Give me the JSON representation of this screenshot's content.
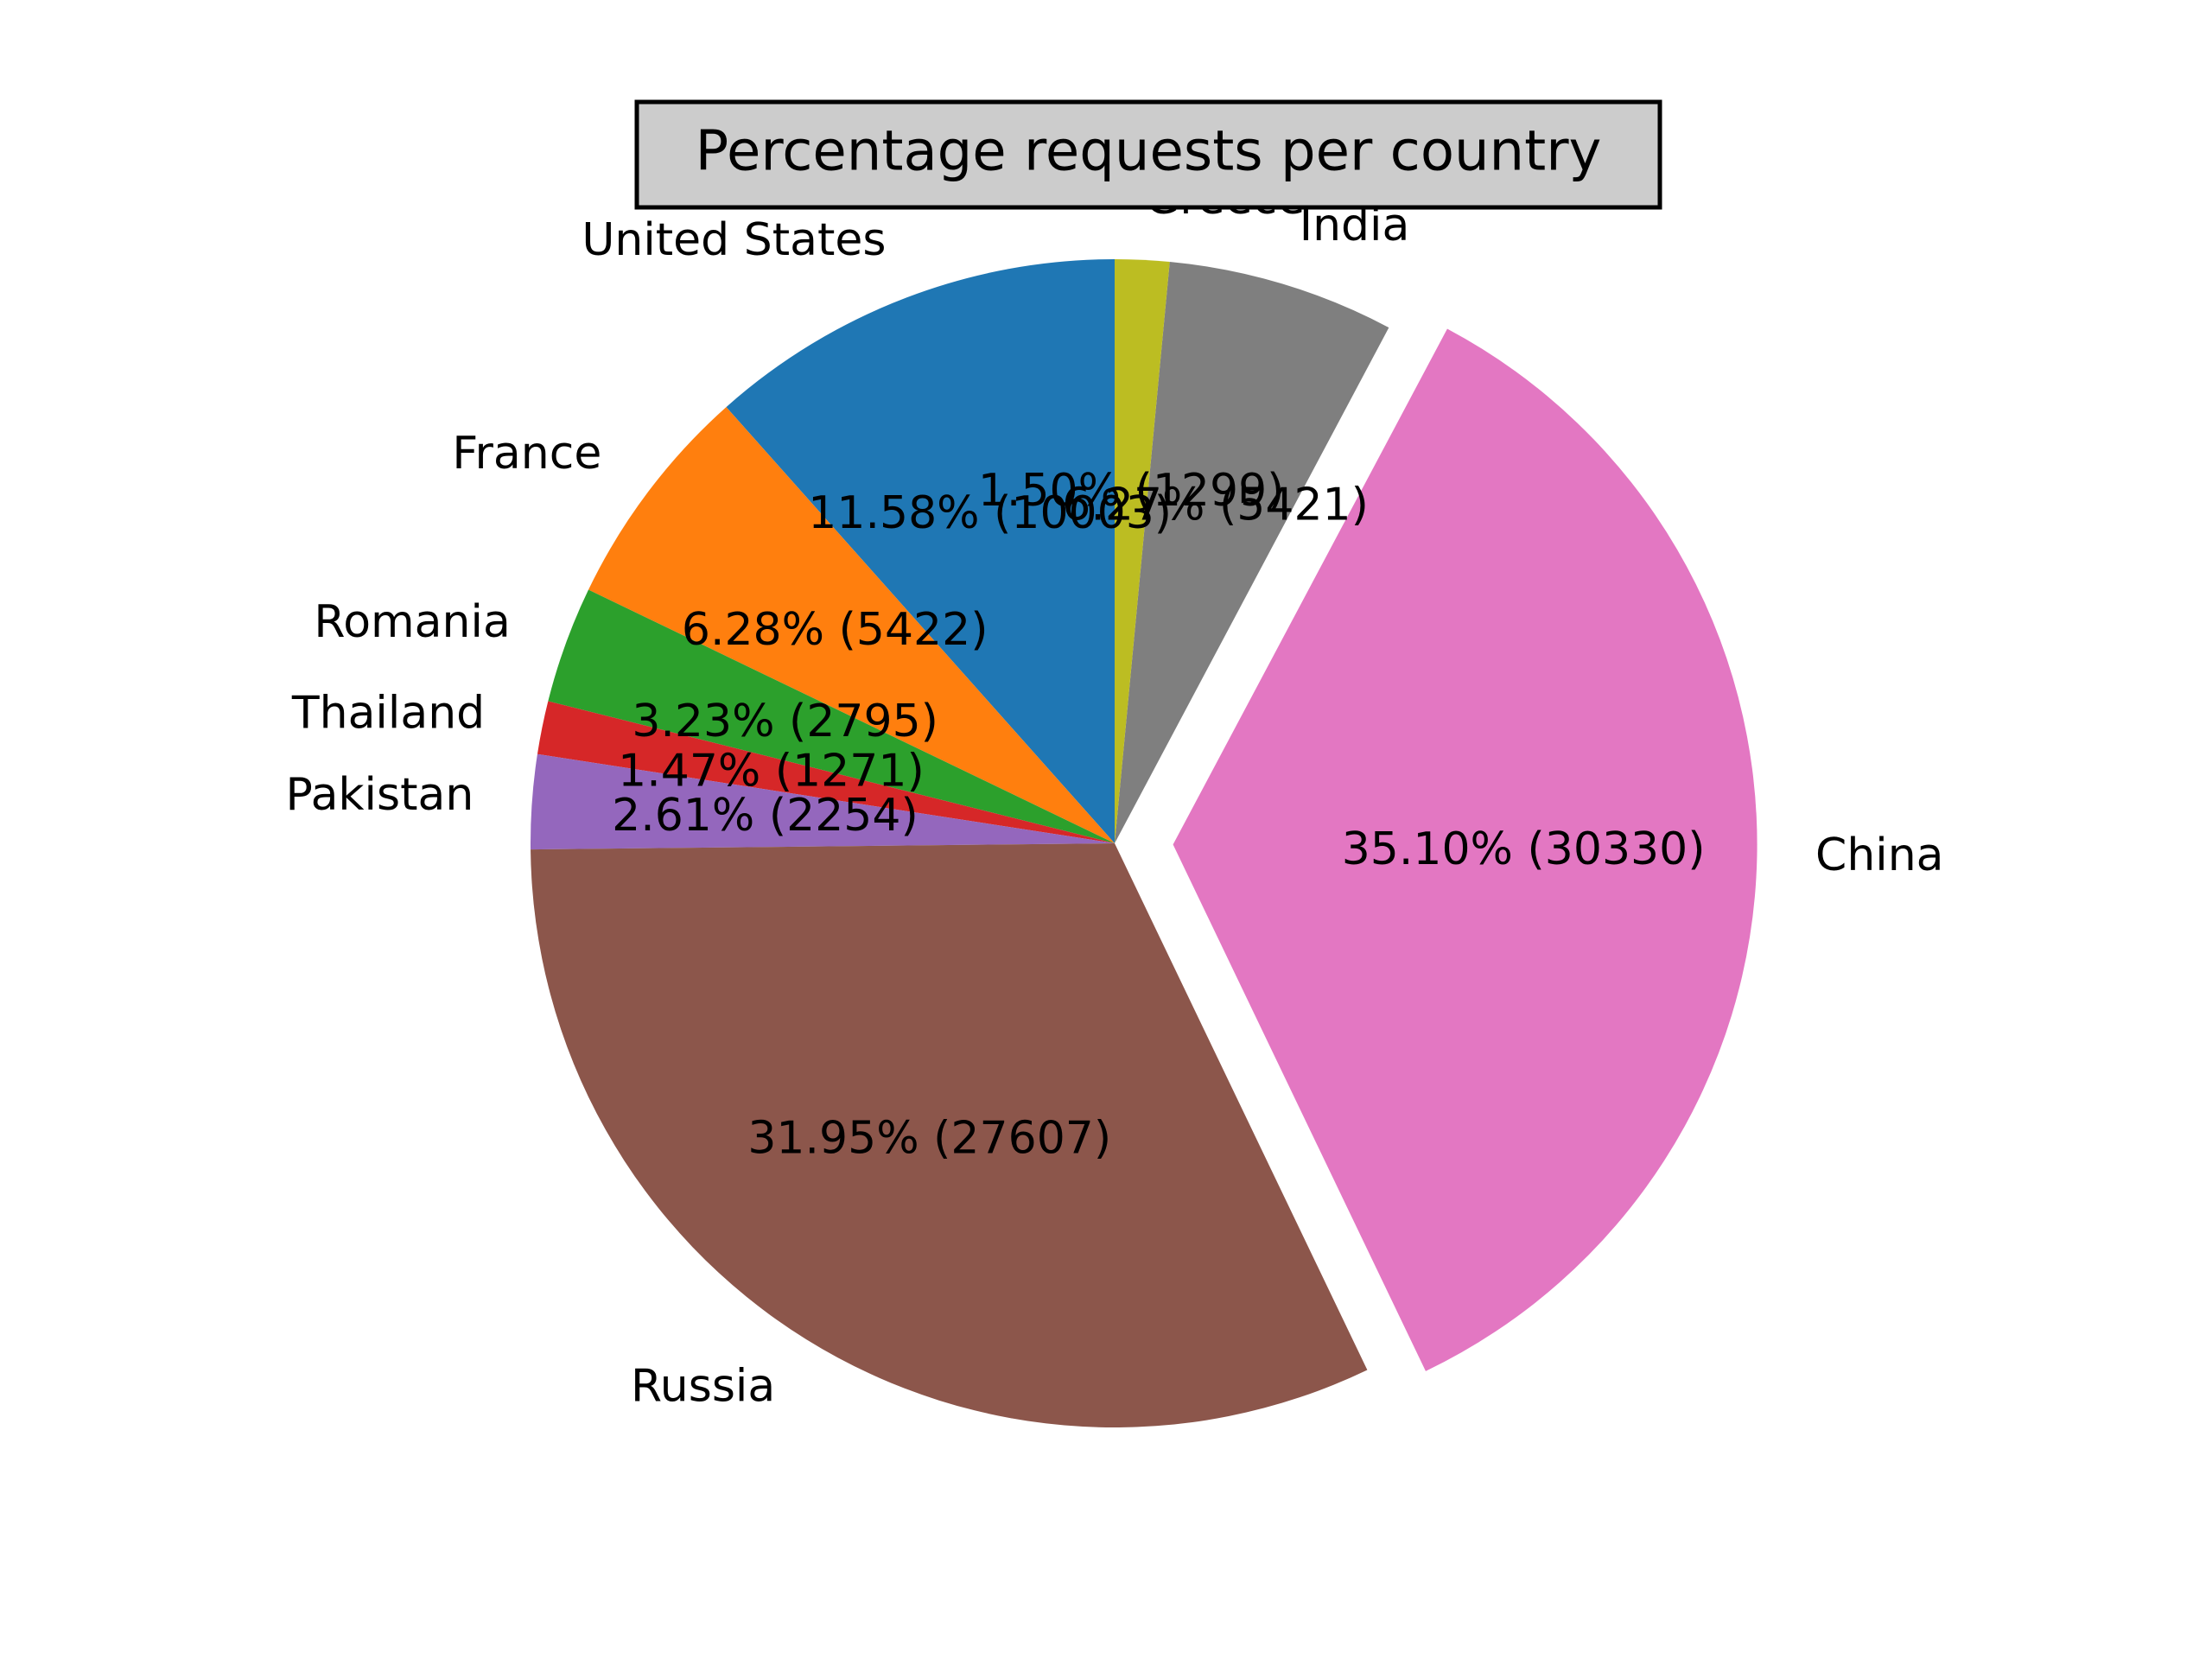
{
  "chart_data": {
    "type": "pie",
    "title": "Percentage requests per  country",
    "slices": [
      {
        "label": "United States",
        "value": 10003,
        "percent": "11.58%",
        "color": "#1f77b4"
      },
      {
        "label": "France",
        "value": 5422,
        "percent": "6.28%",
        "color": "#ff7f0e"
      },
      {
        "label": "Romania",
        "value": 2795,
        "percent": "3.23%",
        "color": "#2ca02c"
      },
      {
        "label": "Thailand",
        "value": 1271,
        "percent": "1.47%",
        "color": "#d62728"
      },
      {
        "label": "Pakistan",
        "value": 2254,
        "percent": "2.61%",
        "color": "#9467bd"
      },
      {
        "label": "Russia",
        "value": 27607,
        "percent": "31.95%",
        "color": "#8c564b"
      },
      {
        "label": "China",
        "value": 30330,
        "percent": "35.10%",
        "color": "#e377c2",
        "exploded": true
      },
      {
        "label": "India",
        "value": 5421,
        "percent": "6.27%",
        "color": "#7f7f7f"
      },
      {
        "label": "Greece",
        "value": 1299,
        "percent": "1.50%",
        "color": "#bcbd22"
      }
    ],
    "start_angle_deg": 90,
    "direction": "counterclockwise",
    "title_box_color": "#cccccc"
  }
}
